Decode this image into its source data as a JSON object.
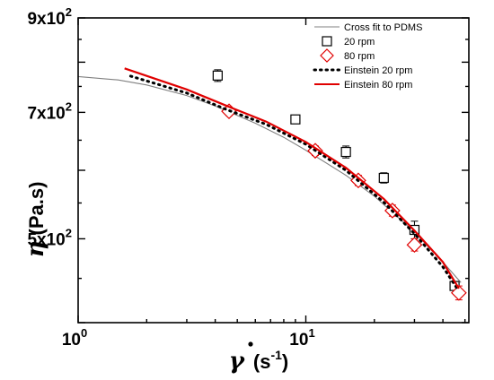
{
  "chart_data": {
    "type": "scatter",
    "xscale": "log",
    "yscale": "log",
    "xlim": [
      1,
      52
    ],
    "ylim": [
      400,
      900
    ],
    "xlabel": "γ̇ (s⁻¹)",
    "ylabel": "η (Pa.s)",
    "x_ticks": [
      {
        "value": 1,
        "label": "10",
        "exp": "0"
      },
      {
        "value": 10,
        "label": "10",
        "exp": "1"
      }
    ],
    "y_ticks": [
      {
        "value": 500,
        "label": "5x10",
        "exp": "2"
      },
      {
        "value": 700,
        "label": "7x10",
        "exp": "2"
      },
      {
        "value": 900,
        "label": "9x10",
        "exp": "2"
      }
    ],
    "legend_position": "top-right",
    "series": [
      {
        "name": "Cross fit to PDMS",
        "kind": "line",
        "color": "#808080",
        "points": [
          [
            1.0,
            770
          ],
          [
            1.5,
            763
          ],
          [
            2,
            753
          ],
          [
            3,
            732
          ],
          [
            4,
            712
          ],
          [
            6,
            680
          ],
          [
            8,
            655
          ],
          [
            10,
            633
          ],
          [
            15,
            592
          ],
          [
            20,
            560
          ],
          [
            30,
            509
          ],
          [
            40,
            470
          ],
          [
            48,
            445
          ]
        ]
      },
      {
        "name": "20 rpm",
        "kind": "markers",
        "marker": "square",
        "color": "#000000",
        "points": [
          [
            4.1,
            772
          ],
          [
            9,
            687
          ],
          [
            15,
            630
          ],
          [
            22,
            588
          ],
          [
            30,
            512
          ],
          [
            45,
            441
          ]
        ],
        "errors": [
          12,
          6,
          10,
          8,
          12,
          4
        ]
      },
      {
        "name": "80 rpm",
        "kind": "markers",
        "marker": "diamond",
        "color": "#e00000",
        "points": [
          [
            4.6,
            702
          ],
          [
            11,
            632
          ],
          [
            17,
            584
          ],
          [
            24,
            539
          ],
          [
            30,
            492
          ],
          [
            47,
            433
          ]
        ],
        "errors": [
          8,
          8,
          8,
          8,
          8,
          8
        ]
      },
      {
        "name": "Einstein 20 rpm",
        "kind": "dotted",
        "color": "#000000",
        "points": [
          [
            1.7,
            771
          ],
          [
            3,
            737
          ],
          [
            4.5,
            705
          ],
          [
            6.7,
            678
          ],
          [
            10,
            643
          ],
          [
            15,
            600
          ],
          [
            22,
            551
          ],
          [
            30,
            507
          ],
          [
            40,
            464
          ],
          [
            47,
            435
          ]
        ]
      },
      {
        "name": "Einstein 80 rpm",
        "kind": "line",
        "color": "#e00000",
        "points": [
          [
            1.6,
            787
          ],
          [
            3,
            744
          ],
          [
            4.5,
            712
          ],
          [
            6.7,
            683
          ],
          [
            10,
            647
          ],
          [
            15,
            604
          ],
          [
            22,
            556
          ],
          [
            30,
            511
          ],
          [
            40,
            470
          ],
          [
            47,
            438
          ]
        ]
      }
    ]
  }
}
